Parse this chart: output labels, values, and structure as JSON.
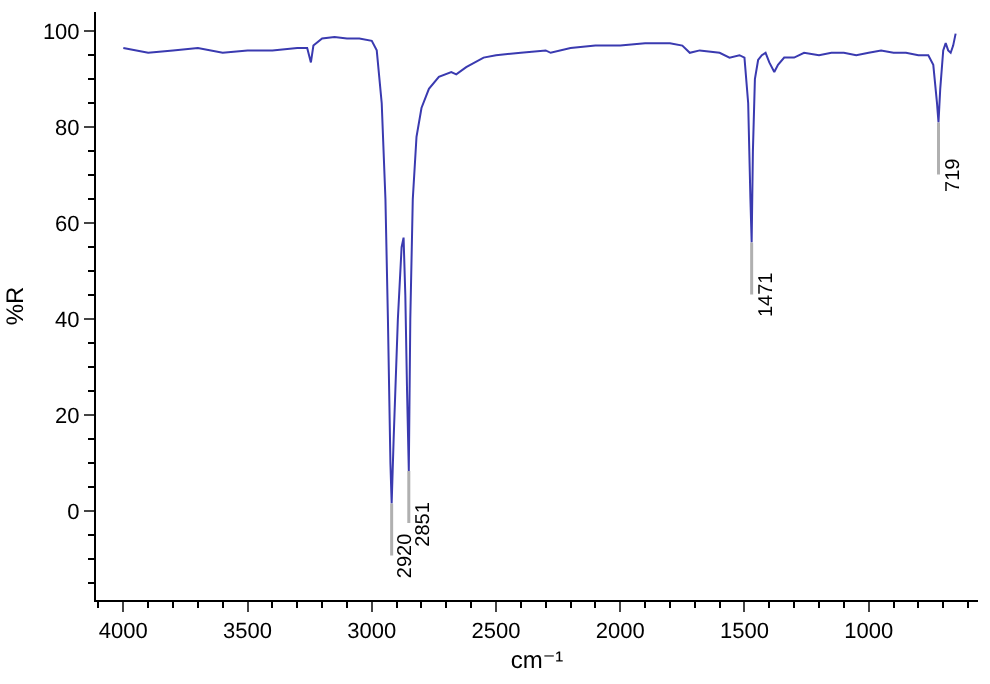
{
  "chart_data": {
    "type": "line",
    "xlabel": "cm⁻¹",
    "ylabel": "%R",
    "xlim": [
      4110,
      560
    ],
    "xticks": [
      4000,
      3500,
      3000,
      2500,
      2000,
      1500,
      1000
    ],
    "ylim": [
      -18.5,
      104
    ],
    "yticks": [
      0,
      20,
      40,
      60,
      80,
      100
    ],
    "grid": false,
    "marker": "none",
    "line_style": "solid",
    "x": [
      4000,
      3900,
      3800,
      3700,
      3600,
      3500,
      3400,
      3300,
      3260,
      3245,
      3235,
      3200,
      3150,
      3100,
      3050,
      3000,
      2980,
      2960,
      2945,
      2935,
      2925,
      2920,
      2912,
      2895,
      2880,
      2872,
      2865,
      2858,
      2851,
      2845,
      2835,
      2820,
      2800,
      2770,
      2730,
      2680,
      2660,
      2620,
      2550,
      2500,
      2400,
      2300,
      2280,
      2200,
      2100,
      2000,
      1900,
      1800,
      1750,
      1720,
      1680,
      1600,
      1560,
      1520,
      1500,
      1485,
      1476,
      1471,
      1466,
      1458,
      1445,
      1430,
      1415,
      1400,
      1380,
      1365,
      1340,
      1300,
      1260,
      1200,
      1150,
      1100,
      1050,
      1000,
      950,
      900,
      850,
      800,
      760,
      740,
      725,
      719,
      712,
      700,
      690,
      680,
      670,
      660,
      650
    ],
    "series": [
      {
        "color": "#3a3ab0",
        "values": [
          96.5,
          95.5,
          96,
          96.5,
          95.5,
          96,
          96,
          96.5,
          96.5,
          93.5,
          97,
          98.5,
          98.8,
          98.5,
          98.5,
          98,
          96,
          85,
          65,
          40,
          10,
          1.6,
          15,
          40,
          55,
          57,
          45,
          25,
          8.4,
          40,
          65,
          78,
          84,
          88,
          90.5,
          91.5,
          91,
          92.5,
          94.5,
          95,
          95.5,
          96,
          95.5,
          96.5,
          97,
          97,
          97.5,
          97.5,
          97,
          95.5,
          96,
          95.5,
          94.5,
          95,
          94.5,
          85,
          65,
          56,
          75,
          90,
          94,
          95,
          95.5,
          93.5,
          91.5,
          93,
          94.5,
          94.5,
          95.5,
          95,
          95.5,
          95.5,
          95,
          95.5,
          96,
          95.5,
          95.5,
          95,
          95,
          93,
          85,
          81,
          88,
          96,
          97.5,
          96,
          95.5,
          97,
          99.5
        ]
      }
    ],
    "annotations": [
      {
        "text": "2920",
        "x": 2920,
        "y": 1.6
      },
      {
        "text": "2851",
        "x": 2851,
        "y": 8.4
      },
      {
        "text": "1471",
        "x": 1471,
        "y": 56
      },
      {
        "text": "719",
        "x": 719,
        "y": 81
      }
    ]
  }
}
